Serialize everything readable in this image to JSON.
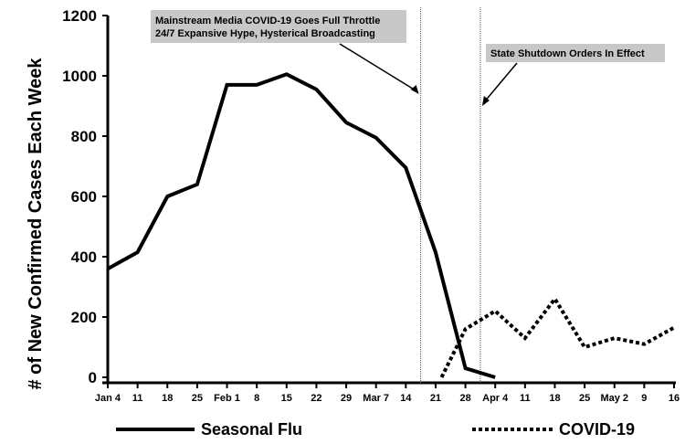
{
  "chart_data": {
    "type": "line",
    "ylabel": "# of New Confirmed Cases Each Week",
    "xlabel": "",
    "ylim": [
      0,
      1200
    ],
    "yticks": [
      0,
      200,
      400,
      600,
      800,
      1000,
      1200
    ],
    "grid": false,
    "legend_position": "bottom",
    "x_tick_labels": [
      "Jan 4",
      "11",
      "18",
      "25",
      "Feb 1",
      "8",
      "15",
      "22",
      "29",
      "Mar 7",
      "14",
      "21",
      "28",
      "Apr 4",
      "11",
      "18",
      "25",
      "May 2",
      "9",
      "16"
    ],
    "series": [
      {
        "name": "Seasonal Flu",
        "style": "solid",
        "color": "#000000",
        "points": [
          [
            0,
            360
          ],
          [
            1,
            415
          ],
          [
            2,
            600
          ],
          [
            3,
            640
          ],
          [
            4,
            970
          ],
          [
            5,
            970
          ],
          [
            6,
            1005
          ],
          [
            7,
            955
          ],
          [
            8,
            845
          ],
          [
            9,
            795
          ],
          [
            10,
            695
          ],
          [
            11,
            415
          ],
          [
            12,
            30
          ],
          [
            13,
            0
          ]
        ]
      },
      {
        "name": "COVID-19",
        "style": "dotted",
        "color": "#000000",
        "points": [
          [
            11.2,
            0
          ],
          [
            12,
            160
          ],
          [
            13,
            220
          ],
          [
            14,
            130
          ],
          [
            15,
            260
          ],
          [
            16,
            100
          ],
          [
            17,
            130
          ],
          [
            18,
            110
          ],
          [
            19,
            165
          ]
        ]
      }
    ],
    "annotations": [
      {
        "lines": [
          "Mainstream Media COVID-19 Goes Full Throttle",
          "24/7 Expansive Hype, Hysterical Broadcasting"
        ],
        "x": 10.5
      },
      {
        "lines": [
          "State Shutdown Orders In Effect"
        ],
        "x": 12.5
      }
    ]
  }
}
